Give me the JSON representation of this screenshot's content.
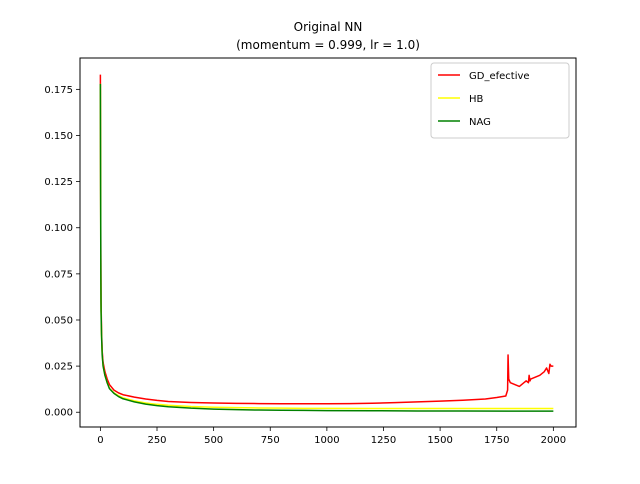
{
  "chart_data": {
    "type": "line",
    "title": "Original NN",
    "subtitle": "(momentum = 0.999, lr = 1.0)",
    "xlabel": "",
    "ylabel": "",
    "xlim": [
      -90,
      2100
    ],
    "ylim": [
      -0.008,
      0.192
    ],
    "x_ticks": [
      0,
      250,
      500,
      750,
      1000,
      1250,
      1500,
      1750,
      2000
    ],
    "x_tick_labels": [
      "0",
      "250",
      "500",
      "750",
      "1000",
      "1250",
      "1500",
      "1750",
      "2000"
    ],
    "y_ticks": [
      0.0,
      0.025,
      0.05,
      0.075,
      0.1,
      0.125,
      0.15,
      0.175
    ],
    "y_tick_labels": [
      "0.000",
      "0.025",
      "0.050",
      "0.075",
      "0.100",
      "0.125",
      "0.150",
      "0.175"
    ],
    "grid": false,
    "legend_position": "top-right",
    "series": [
      {
        "name": "GD_efective",
        "color": "#ff0000",
        "x": [
          0,
          1,
          2,
          3,
          5,
          8,
          12,
          20,
          30,
          40,
          60,
          80,
          100,
          150,
          200,
          250,
          300,
          400,
          500,
          600,
          700,
          800,
          900,
          1000,
          1100,
          1200,
          1300,
          1400,
          1500,
          1600,
          1700,
          1750,
          1790,
          1798,
          1800,
          1803,
          1810,
          1830,
          1850,
          1870,
          1880,
          1890,
          1893,
          1897,
          1900,
          1920,
          1940,
          1960,
          1970,
          1980,
          1985,
          1990,
          2000
        ],
        "y": [
          0.183,
          0.13,
          0.085,
          0.06,
          0.045,
          0.033,
          0.027,
          0.022,
          0.018,
          0.015,
          0.012,
          0.0105,
          0.0095,
          0.0082,
          0.0072,
          0.0064,
          0.0058,
          0.0053,
          0.005,
          0.0048,
          0.0047,
          0.0046,
          0.0046,
          0.0046,
          0.0047,
          0.0049,
          0.0052,
          0.0056,
          0.006,
          0.0065,
          0.0072,
          0.008,
          0.0088,
          0.012,
          0.031,
          0.018,
          0.016,
          0.015,
          0.014,
          0.016,
          0.017,
          0.016,
          0.02,
          0.017,
          0.018,
          0.019,
          0.02,
          0.022,
          0.024,
          0.021,
          0.026,
          0.025,
          0.025
        ]
      },
      {
        "name": "HB",
        "color": "#ffff00",
        "x": [
          0,
          1,
          2,
          3,
          5,
          8,
          12,
          20,
          30,
          40,
          60,
          80,
          100,
          150,
          200,
          250,
          300,
          400,
          500,
          600,
          700,
          800,
          900,
          1000,
          1200,
          1400,
          1600,
          1800,
          2000
        ],
        "y": [
          0.178,
          0.12,
          0.075,
          0.055,
          0.042,
          0.031,
          0.025,
          0.02,
          0.016,
          0.013,
          0.0105,
          0.009,
          0.0078,
          0.0062,
          0.005,
          0.0043,
          0.0038,
          0.0031,
          0.0027,
          0.0025,
          0.0023,
          0.0022,
          0.0021,
          0.0021,
          0.002,
          0.002,
          0.002,
          0.002,
          0.002
        ]
      },
      {
        "name": "NAG",
        "color": "#008000",
        "x": [
          0,
          1,
          2,
          3,
          5,
          8,
          12,
          20,
          30,
          40,
          60,
          80,
          100,
          150,
          200,
          250,
          300,
          400,
          500,
          600,
          700,
          800,
          900,
          1000,
          1200,
          1400,
          1600,
          1800,
          2000
        ],
        "y": [
          0.178,
          0.12,
          0.075,
          0.055,
          0.042,
          0.031,
          0.025,
          0.02,
          0.016,
          0.0128,
          0.0102,
          0.0085,
          0.0073,
          0.0056,
          0.0044,
          0.0036,
          0.003,
          0.0022,
          0.0017,
          0.0014,
          0.0012,
          0.0011,
          0.001,
          0.0009,
          0.0008,
          0.0007,
          0.0007,
          0.0006,
          0.0006
        ]
      }
    ]
  }
}
